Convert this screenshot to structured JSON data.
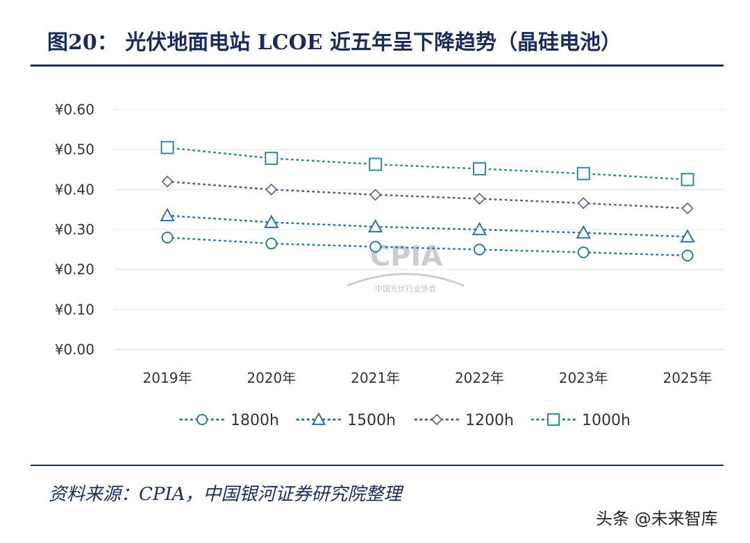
{
  "header": {
    "title": "图20：  光伏地面电站 LCOE 近五年呈下降趋势（晶硅电池）"
  },
  "footer": {
    "source": "资料来源：CPIA，中国银河证券研究院整理",
    "brand": "头条 @未来智库"
  },
  "watermark": {
    "logo_text": "CPIA",
    "logo_sub": "中国光伏行业协会"
  },
  "chart_data": {
    "type": "line",
    "title": "",
    "categories": [
      "2019年",
      "2020年",
      "2021年",
      "2022年",
      "2023年",
      "2025年"
    ],
    "ylim": [
      0,
      0.6
    ],
    "yticks": [
      0.0,
      0.1,
      0.2,
      0.3,
      0.4,
      0.5,
      0.6
    ],
    "ytick_labels": [
      "¥0.00",
      "¥0.10",
      "¥0.20",
      "¥0.30",
      "¥0.40",
      "¥0.50",
      "¥0.60"
    ],
    "grid": true,
    "legend_position": "bottom",
    "series": [
      {
        "name": "1800h",
        "marker": "circle",
        "color": "#2a7da8",
        "values": [
          0.28,
          0.265,
          0.257,
          0.25,
          0.243,
          0.235
        ]
      },
      {
        "name": "1500h",
        "marker": "triangle",
        "color": "#2a6fb0",
        "values": [
          0.335,
          0.318,
          0.307,
          0.3,
          0.292,
          0.282
        ]
      },
      {
        "name": "1200h",
        "marker": "diamond",
        "color": "#555d80",
        "values": [
          0.42,
          0.4,
          0.387,
          0.377,
          0.366,
          0.353
        ]
      },
      {
        "name": "1000h",
        "marker": "square",
        "color": "#2f8a96",
        "values": [
          0.505,
          0.478,
          0.463,
          0.452,
          0.44,
          0.425
        ]
      }
    ]
  }
}
